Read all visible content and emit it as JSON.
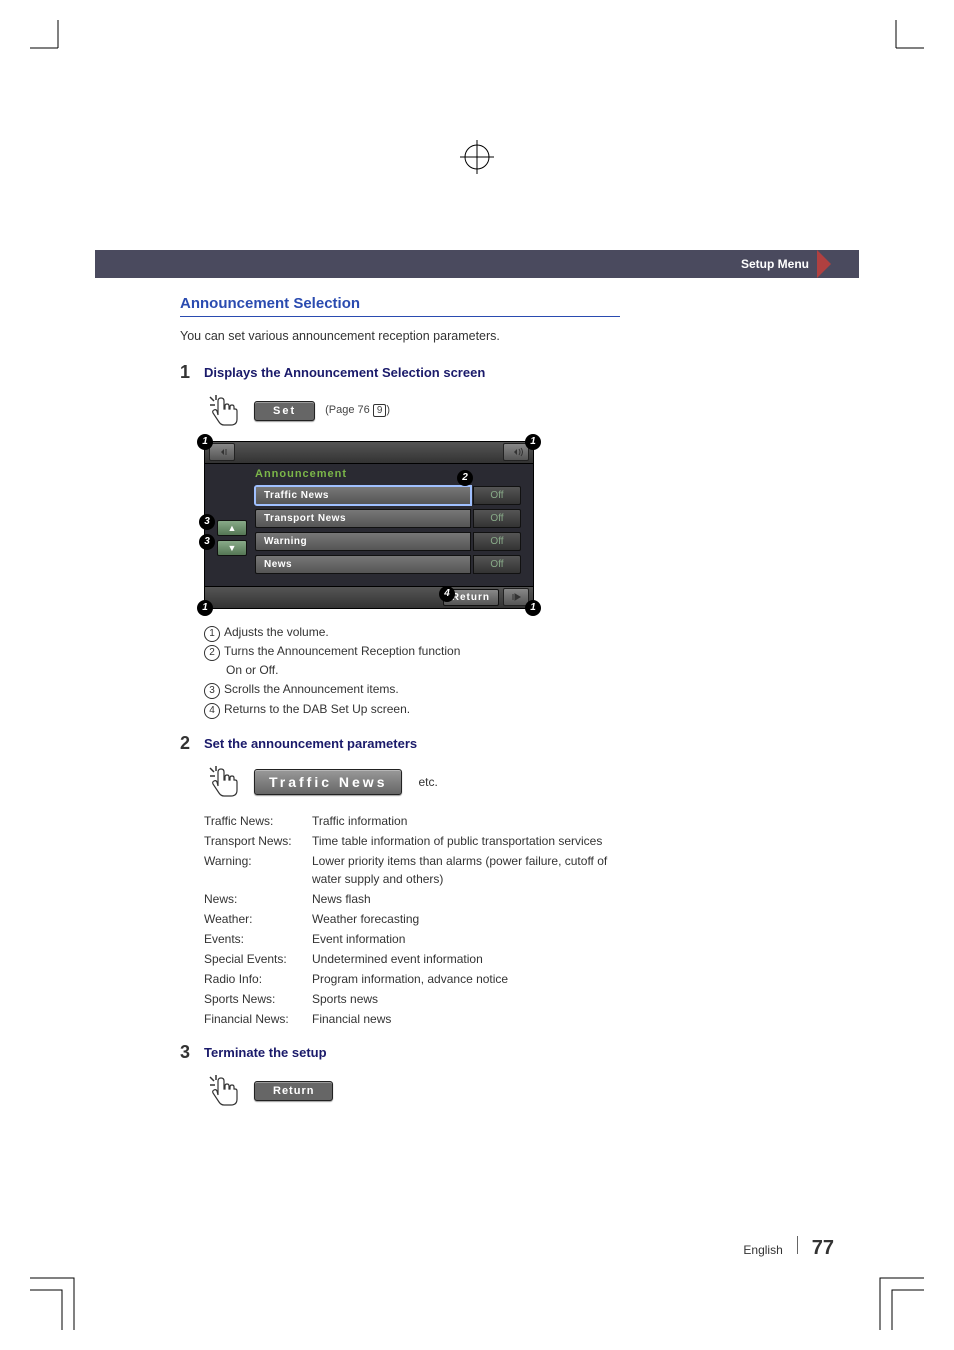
{
  "header": {
    "category": "Setup Menu"
  },
  "section": {
    "title": "Announcement Selection",
    "intro": "You can set various announcement reception parameters."
  },
  "step1": {
    "num": "1",
    "title": "Displays the Announcement Selection screen",
    "button": "Set",
    "page_ref_prefix": "(Page 76",
    "page_ref_box": "9",
    "page_ref_suffix": ")"
  },
  "panel": {
    "title": "Announcement",
    "rows": [
      {
        "label": "Traffic News",
        "value": "Off"
      },
      {
        "label": "Transport News",
        "value": "Off"
      },
      {
        "label": "Warning",
        "value": "Off"
      },
      {
        "label": "News",
        "value": "Off"
      }
    ],
    "return": "Return",
    "scroll_up": "▲",
    "scroll_dn": "▼",
    "callouts": {
      "c1": "1",
      "c2": "2",
      "c3": "3",
      "c4": "4"
    }
  },
  "notes": {
    "n1": "Adjusts the volume.",
    "n2a": "Turns the Announcement Reception function",
    "n2b": "On or Off.",
    "n3": "Scrolls the Announcement items.",
    "n4": "Returns to the DAB Set Up screen."
  },
  "step2": {
    "num": "2",
    "title": "Set the announcement parameters",
    "button": "Traffic News",
    "etc": "etc.",
    "defs": [
      {
        "term": "Traffic News:",
        "desc": "Traffic information"
      },
      {
        "term": "Transport News:",
        "desc": "Time table information of public transportation services"
      },
      {
        "term": "Warning:",
        "desc": "Lower priority items than alarms (power failure, cutoff of water supply and others)"
      },
      {
        "term": "News:",
        "desc": "News flash"
      },
      {
        "term": "Weather:",
        "desc": "Weather forecasting"
      },
      {
        "term": "Events:",
        "desc": "Event information"
      },
      {
        "term": "Special Events:",
        "desc": "Undetermined event information"
      },
      {
        "term": "Radio Info:",
        "desc": "Program information, advance notice"
      },
      {
        "term": "Sports News:",
        "desc": "Sports news"
      },
      {
        "term": "Financial News:",
        "desc": "Financial news"
      }
    ]
  },
  "step3": {
    "num": "3",
    "title": "Terminate the setup",
    "button": "Return"
  },
  "footer": {
    "lang": "English",
    "page": "77"
  },
  "colors": {
    "header_bg": "#4a4a5e",
    "accent_blue": "#2a4bb0",
    "panel_bg": "#2a2a32",
    "panel_title": "#7bb649"
  }
}
